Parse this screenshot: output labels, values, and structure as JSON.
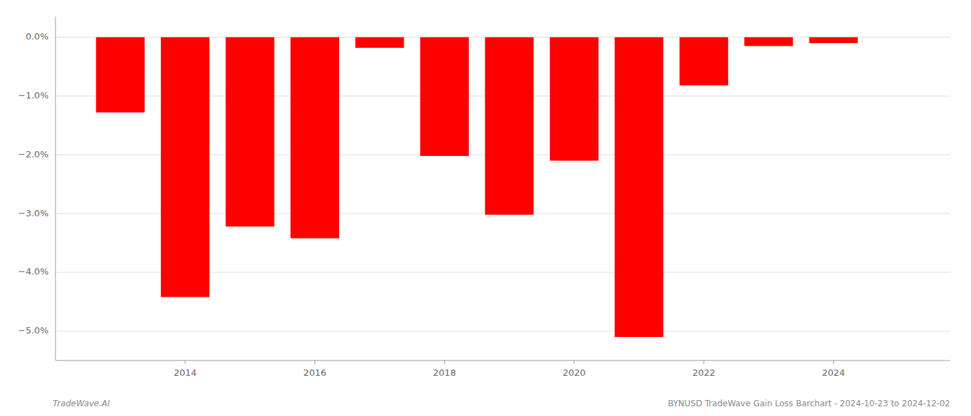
{
  "chart_data": {
    "type": "bar",
    "x": [
      2013,
      2014,
      2015,
      2016,
      2017,
      2018,
      2019,
      2020,
      2021,
      2022,
      2023,
      2024
    ],
    "values": [
      -1.28,
      -4.42,
      -3.22,
      -3.42,
      -0.18,
      -2.02,
      -3.02,
      -2.1,
      -5.1,
      -0.82,
      -0.15,
      -0.1
    ],
    "color": "#ff0000",
    "xlim": [
      2012.0,
      2025.8
    ],
    "xticks": [
      2014,
      2016,
      2018,
      2020,
      2022,
      2024
    ],
    "ylim": [
      -5.5,
      0.35
    ],
    "yticks": [
      {
        "value": 0.0,
        "label": "0.0%"
      },
      {
        "value": -1.0,
        "label": "−1.0%"
      },
      {
        "value": -2.0,
        "label": "−2.0%"
      },
      {
        "value": -3.0,
        "label": "−3.0%"
      },
      {
        "value": -4.0,
        "label": "−4.0%"
      },
      {
        "value": -5.0,
        "label": "−5.0%"
      }
    ],
    "grid": true,
    "annotations": [
      "TradeWave.AI",
      "BYNUSD TradeWave Gain Loss Barchart - 2024-10-23 to 2024-12-02"
    ]
  }
}
